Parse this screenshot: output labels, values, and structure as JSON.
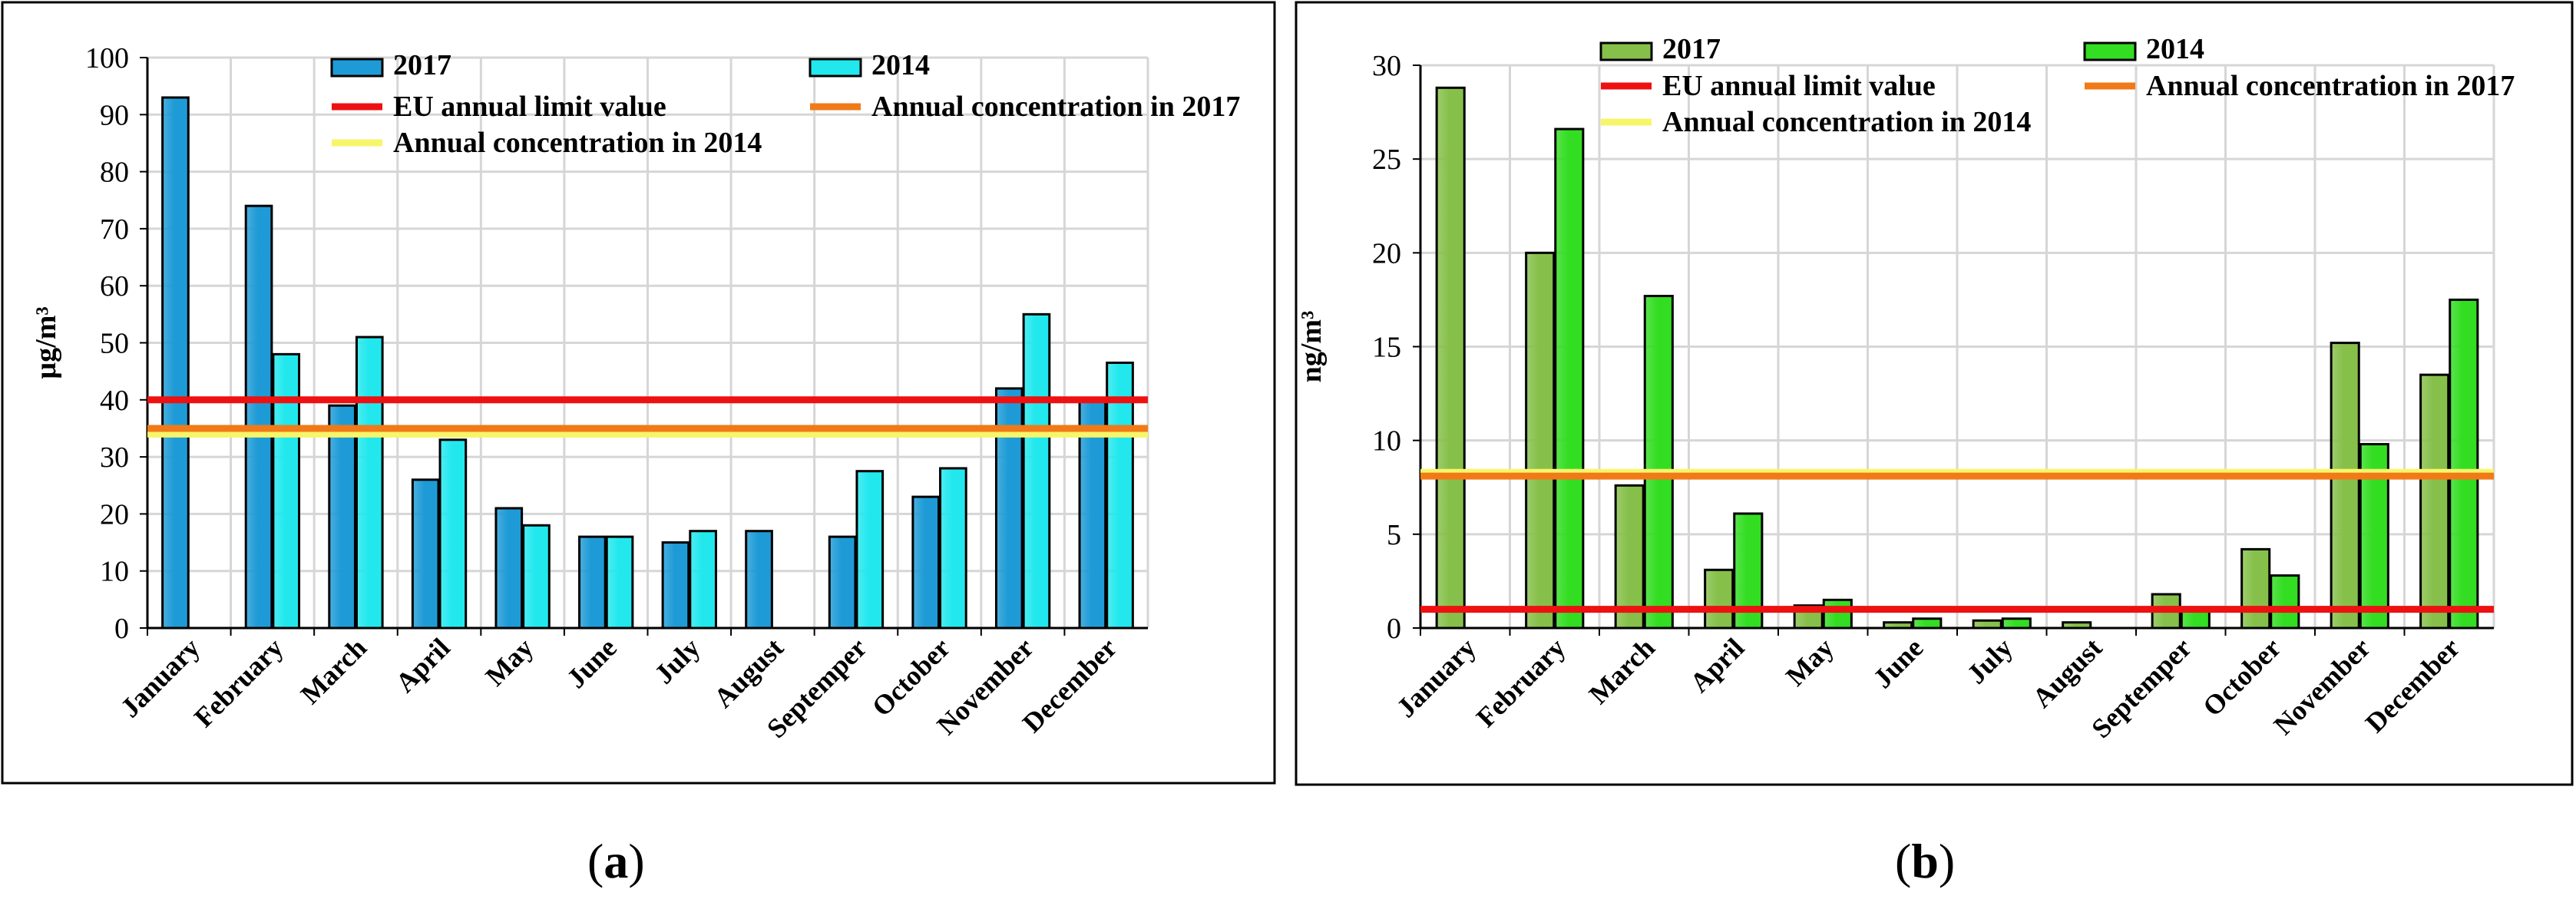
{
  "captions": {
    "a": "a",
    "b": "b"
  },
  "chart_data": [
    {
      "type": "bar",
      "panel": "a",
      "ylabel": "µg/m³",
      "ylim": [
        0,
        100
      ],
      "yticks": [
        0,
        10,
        20,
        30,
        40,
        50,
        60,
        70,
        80,
        90,
        100
      ],
      "categories": [
        "January",
        "February",
        "March",
        "April",
        "May",
        "June",
        "July",
        "August",
        "Septemper",
        "October",
        "November",
        "December"
      ],
      "series": [
        {
          "name": "2017",
          "color": "#1e9bd6",
          "values": [
            93,
            74,
            39,
            26,
            21,
            16,
            15,
            17,
            16,
            23,
            42,
            40
          ]
        },
        {
          "name": "2014",
          "color": "#22e8ee",
          "values": [
            null,
            48,
            51,
            33,
            18,
            16,
            17,
            null,
            27.5,
            28,
            55,
            46.5
          ]
        }
      ],
      "reference_lines": [
        {
          "name": "EU annual limit value",
          "color": "#ee1111",
          "value": 40
        },
        {
          "name": "Annual concentration in 2017",
          "color": "#f07a18",
          "value": 35
        },
        {
          "name": "Annual concentration in 2014",
          "color": "#f7f56a",
          "value": 34
        }
      ]
    },
    {
      "type": "bar",
      "panel": "b",
      "ylabel": "ng/m³",
      "ylim": [
        0,
        30
      ],
      "yticks": [
        0,
        5,
        10,
        15,
        20,
        25,
        30
      ],
      "categories": [
        "January",
        "February",
        "March",
        "April",
        "May",
        "June",
        "July",
        "August",
        "Septemper",
        "October",
        "November",
        "December"
      ],
      "series": [
        {
          "name": "2017",
          "color": "#86c04a",
          "values": [
            28.8,
            20,
            7.6,
            3.1,
            1.2,
            0.3,
            0.4,
            0.3,
            1.8,
            4.2,
            15.2,
            13.5
          ]
        },
        {
          "name": "2014",
          "color": "#33dd22",
          "values": [
            null,
            26.6,
            17.7,
            6.1,
            1.5,
            0.5,
            0.5,
            null,
            0.9,
            2.8,
            9.8,
            17.5
          ]
        }
      ],
      "reference_lines": [
        {
          "name": "EU annual limit value",
          "color": "#ee1111",
          "value": 1
        },
        {
          "name": "Annual concentration in 2017",
          "color": "#f07a18",
          "value": 8.1
        },
        {
          "name": "Annual concentration in 2014",
          "color": "#f7f56a",
          "value": 8.3
        }
      ]
    }
  ]
}
